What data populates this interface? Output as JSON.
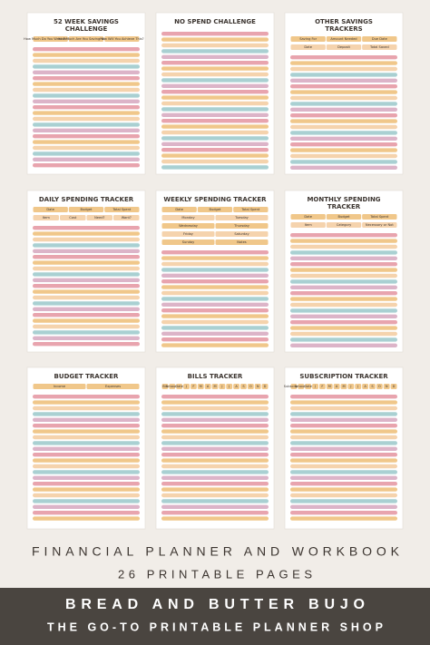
{
  "pages": [
    {
      "title": [
        "52 WEEK SAVINGS",
        "CHALLENGE"
      ],
      "labels": [
        [
          "How Much Do You Want To Save?",
          "How Much Are You Saving Weekly?",
          "How Will You Achieve This?"
        ]
      ]
    },
    {
      "title": [
        "NO SPEND CHALLENGE"
      ],
      "labels": []
    },
    {
      "title": [
        "OTHER SAVINGS",
        "TRACKERS"
      ],
      "labels": [
        [
          "Saving For",
          "Amount Needed",
          "Due Date"
        ],
        [
          "Date",
          "Deposit",
          "Total Saved"
        ]
      ]
    },
    {
      "title": [
        "DAILY SPENDING TRACKER"
      ],
      "labels": [
        [
          "Date",
          "Budget",
          "Total Spent"
        ],
        [
          "Item",
          "Cost",
          "Need?",
          "Want?"
        ]
      ]
    },
    {
      "title": [
        "WEEKLY SPENDING TRACKER"
      ],
      "labels": [
        [
          "Date",
          "Budget",
          "Total Spent"
        ],
        [
          "Monday",
          "Tuesday"
        ],
        [
          "Wednesday",
          "Thursday"
        ],
        [
          "Friday",
          "Saturday"
        ],
        [
          "Sunday",
          "Notes"
        ]
      ]
    },
    {
      "title": [
        "MONTHLY SPENDING",
        "TRACKER"
      ],
      "labels": [
        [
          "Date",
          "Budget",
          "Total Spent"
        ],
        [
          "Item",
          "Category",
          "Necessary or Not"
        ]
      ]
    },
    {
      "title": [
        "BUDGET TRACKER"
      ],
      "labels": [
        [
          "Income",
          "Expenses"
        ]
      ]
    },
    {
      "title": [
        "BILLS TRACKER"
      ],
      "labels": [
        [
          "Bill",
          "Amount",
          "Date",
          "J",
          "F",
          "M",
          "A",
          "M",
          "J",
          "J",
          "A",
          "S",
          "O",
          "N",
          "D"
        ]
      ]
    },
    {
      "title": [
        "SUBSCRIPTION TRACKER"
      ],
      "labels": [
        [
          "Subscription",
          "Amount",
          "Date",
          "J",
          "F",
          "M",
          "A",
          "M",
          "J",
          "J",
          "A",
          "S",
          "O",
          "N",
          "D"
        ]
      ]
    }
  ],
  "footer": {
    "headline": "FINANCIAL PLANNER AND WORKBOOK",
    "count": "26 PRINTABLE PAGES",
    "brand": "BREAD AND BUTTER BUJO",
    "tagline": "THE GO-TO PRINTABLE PLANNER SHOP"
  }
}
